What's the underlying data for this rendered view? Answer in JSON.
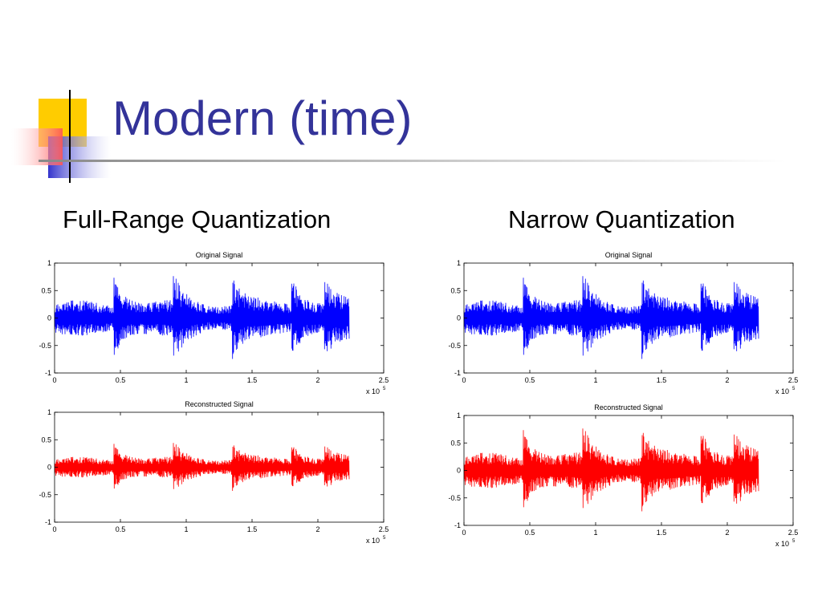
{
  "slide": {
    "title": "Modern (time)",
    "columns": [
      {
        "heading": "Full-Range Quantization"
      },
      {
        "heading": "Narrow Quantization"
      }
    ]
  },
  "colors": {
    "title": "#333399",
    "original": "#0000ff",
    "reconstructed": "#ff0000",
    "deco_yellow": "#ffcc00",
    "deco_blue": "#3333cc",
    "deco_red": "#ff6666"
  },
  "chart_data": [
    {
      "id": "full-original",
      "type": "line",
      "title": "Original Signal",
      "xlim": [
        0,
        2.5
      ],
      "ylim": [
        -1,
        1
      ],
      "xticks": [
        "0",
        "0.5",
        "1",
        "1.5",
        "2",
        "2.5"
      ],
      "yticks": [
        "1",
        "0.5",
        "0",
        "-0.5",
        "-1"
      ],
      "x_multiplier": "x 10",
      "x_exponent": "5",
      "series": [
        {
          "color": "#0000ff",
          "x_end": 2.24,
          "amp": 0.95,
          "bursts": [
            0.45,
            0.9,
            1.35,
            1.8,
            2.05
          ],
          "seed": 7
        }
      ],
      "grid": false
    },
    {
      "id": "full-reconstructed",
      "type": "line",
      "title": "Reconstructed Signal",
      "xlim": [
        0,
        2.5
      ],
      "ylim": [
        -1,
        1
      ],
      "xticks": [
        "0",
        "0.5",
        "1",
        "1.5",
        "2",
        "2.5"
      ],
      "yticks": [
        "1",
        "0.5",
        "0",
        "-0.5",
        "-1"
      ],
      "x_multiplier": "x 10",
      "x_exponent": "5",
      "series": [
        {
          "color": "#ff0000",
          "x_end": 2.24,
          "amp": 0.55,
          "bursts": [
            0.45,
            0.9,
            1.35,
            1.8,
            2.05
          ],
          "seed": 7
        }
      ],
      "grid": false
    },
    {
      "id": "narrow-original",
      "type": "line",
      "title": "Original Signal",
      "xlim": [
        0,
        2.5
      ],
      "ylim": [
        -1,
        1
      ],
      "xticks": [
        "0",
        "0.5",
        "1",
        "1.5",
        "2",
        "2.5"
      ],
      "yticks": [
        "1",
        "0.5",
        "0",
        "-0.5",
        "-1"
      ],
      "x_multiplier": "x 10",
      "x_exponent": "5",
      "series": [
        {
          "color": "#0000ff",
          "x_end": 2.24,
          "amp": 0.95,
          "bursts": [
            0.45,
            0.9,
            1.35,
            1.8,
            2.05
          ],
          "seed": 7
        }
      ],
      "grid": false
    },
    {
      "id": "narrow-reconstructed",
      "type": "line",
      "title": "Reconstructed Signal",
      "xlim": [
        0,
        2.5
      ],
      "ylim": [
        -1,
        1
      ],
      "xticks": [
        "0",
        "0.5",
        "1",
        "1.5",
        "2",
        "2.5"
      ],
      "yticks": [
        "1",
        "0.5",
        "0",
        "-0.5",
        "-1"
      ],
      "x_multiplier": "x 10",
      "x_exponent": "5",
      "series": [
        {
          "color": "#ff0000",
          "x_end": 2.24,
          "amp": 0.95,
          "bursts": [
            0.45,
            0.9,
            1.35,
            1.8,
            2.05
          ],
          "seed": 7
        }
      ],
      "grid": false
    }
  ]
}
